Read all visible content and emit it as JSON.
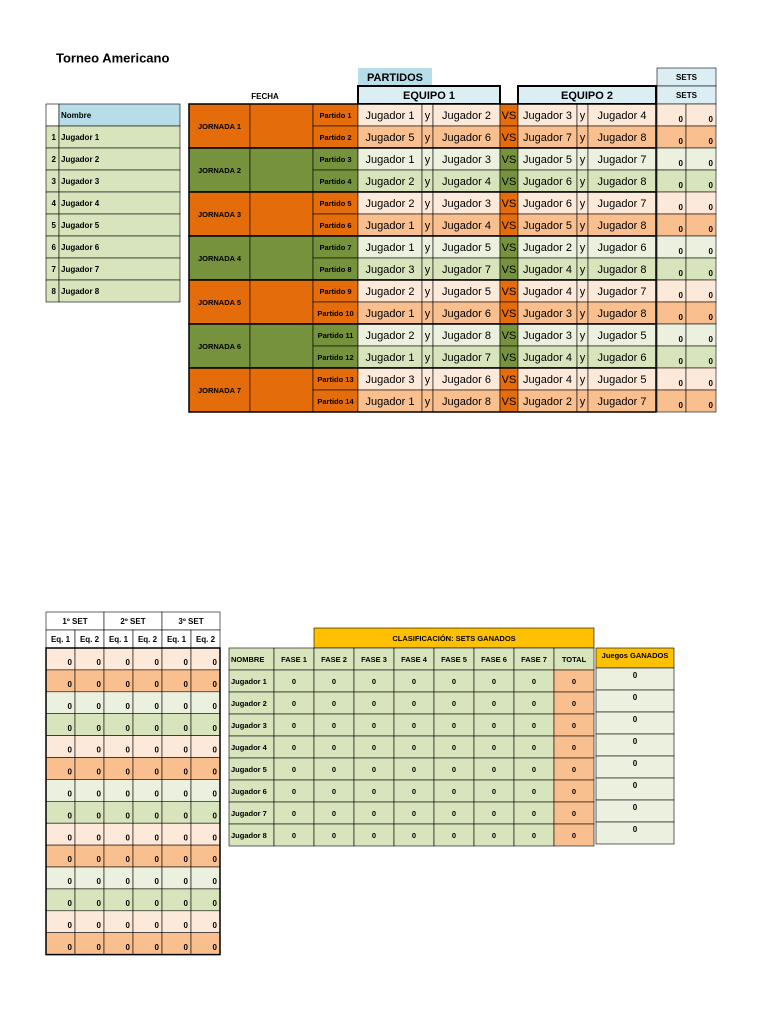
{
  "title": "Torneo Americano",
  "players": {
    "header": "Nombre",
    "rows": [
      {
        "number": 1,
        "name": "Jugador 1"
      },
      {
        "number": 2,
        "name": "Jugador 2"
      },
      {
        "number": 3,
        "name": "Jugador 3"
      },
      {
        "number": 4,
        "name": "Jugador 4"
      },
      {
        "number": 5,
        "name": "Jugador 5"
      },
      {
        "number": 6,
        "name": "Jugador 6"
      },
      {
        "number": 7,
        "name": "Jugador 7"
      },
      {
        "number": 8,
        "name": "Jugador 8"
      }
    ]
  },
  "fixtures": {
    "partidos_label": "PARTIDOS",
    "fecha_label": "FECHA",
    "equipo1_label": "EQUIPO 1",
    "equipo2_label": "EQUIPO 2",
    "sets_labels": [
      "SETS",
      "SETS"
    ],
    "and_label": "y",
    "vs_label": "VS",
    "jornadas": [
      {
        "label": "JORNADA 1",
        "partidos": [
          {
            "label": "Partido 1",
            "equipo1": [
              "Jugador 1",
              "Jugador 2"
            ],
            "equipo2": [
              "Jugador 3",
              "Jugador 4"
            ],
            "sets": [
              0,
              0
            ]
          },
          {
            "label": "Partido 2",
            "equipo1": [
              "Jugador 5",
              "Jugador 6"
            ],
            "equipo2": [
              "Jugador 7",
              "Jugador 8"
            ],
            "sets": [
              0,
              0
            ]
          }
        ]
      },
      {
        "label": "JORNADA 2",
        "partidos": [
          {
            "label": "Partido 3",
            "equipo1": [
              "Jugador 1",
              "Jugador 3"
            ],
            "equipo2": [
              "Jugador 5",
              "Jugador 7"
            ],
            "sets": [
              0,
              0
            ]
          },
          {
            "label": "Partido 4",
            "equipo1": [
              "Jugador 2",
              "Jugador 4"
            ],
            "equipo2": [
              "Jugador 6",
              "Jugador 8"
            ],
            "sets": [
              0,
              0
            ]
          }
        ]
      },
      {
        "label": "JORNADA 3",
        "partidos": [
          {
            "label": "Partido 5",
            "equipo1": [
              "Jugador 2",
              "Jugador 3"
            ],
            "equipo2": [
              "Jugador 6",
              "Jugador 7"
            ],
            "sets": [
              0,
              0
            ]
          },
          {
            "label": "Partido 6",
            "equipo1": [
              "Jugador 1",
              "Jugador 4"
            ],
            "equipo2": [
              "Jugador 5",
              "Jugador 8"
            ],
            "sets": [
              0,
              0
            ]
          }
        ]
      },
      {
        "label": "JORNADA 4",
        "partidos": [
          {
            "label": "Partido 7",
            "equipo1": [
              "Jugador 1",
              "Jugador 5"
            ],
            "equipo2": [
              "Jugador 2",
              "Jugador 6"
            ],
            "sets": [
              0,
              0
            ]
          },
          {
            "label": "Partido 8",
            "equipo1": [
              "Jugador 3",
              "Jugador 7"
            ],
            "equipo2": [
              "Jugador 4",
              "Jugador 8"
            ],
            "sets": [
              0,
              0
            ]
          }
        ]
      },
      {
        "label": "JORNADA 5",
        "partidos": [
          {
            "label": "Partido 9",
            "equipo1": [
              "Jugador 2",
              "Jugador 5"
            ],
            "equipo2": [
              "Jugador 4",
              "Jugador 7"
            ],
            "sets": [
              0,
              0
            ]
          },
          {
            "label": "Partido 10",
            "equipo1": [
              "Jugador 1",
              "Jugador 6"
            ],
            "equipo2": [
              "Jugador 3",
              "Jugador 8"
            ],
            "sets": [
              0,
              0
            ]
          }
        ]
      },
      {
        "label": "JORNADA 6",
        "partidos": [
          {
            "label": "Partido 11",
            "equipo1": [
              "Jugador 2",
              "Jugador 8"
            ],
            "equipo2": [
              "Jugador 3",
              "Jugador 5"
            ],
            "sets": [
              0,
              0
            ]
          },
          {
            "label": "Partido 12",
            "equipo1": [
              "Jugador 1",
              "Jugador 7"
            ],
            "equipo2": [
              "Jugador 4",
              "Jugador 6"
            ],
            "sets": [
              0,
              0
            ]
          }
        ]
      },
      {
        "label": "JORNADA 7",
        "partidos": [
          {
            "label": "Partido 13",
            "equipo1": [
              "Jugador 3",
              "Jugador 6"
            ],
            "equipo2": [
              "Jugador 4",
              "Jugador 5"
            ],
            "sets": [
              0,
              0
            ]
          },
          {
            "label": "Partido 14",
            "equipo1": [
              "Jugador 1",
              "Jugador 8"
            ],
            "equipo2": [
              "Jugador 2",
              "Jugador 7"
            ],
            "sets": [
              0,
              0
            ]
          }
        ]
      }
    ]
  },
  "set_scores": {
    "set_labels": [
      "1º SET",
      "2º SET",
      "3º SET"
    ],
    "team_labels": [
      "Eq. 1",
      "Eq. 2",
      "Eq. 1",
      "Eq. 2",
      "Eq. 1",
      "Eq. 2"
    ],
    "rows": [
      [
        0,
        0,
        0,
        0,
        0,
        0
      ],
      [
        0,
        0,
        0,
        0,
        0,
        0
      ],
      [
        0,
        0,
        0,
        0,
        0,
        0
      ],
      [
        0,
        0,
        0,
        0,
        0,
        0
      ],
      [
        0,
        0,
        0,
        0,
        0,
        0
      ],
      [
        0,
        0,
        0,
        0,
        0,
        0
      ],
      [
        0,
        0,
        0,
        0,
        0,
        0
      ],
      [
        0,
        0,
        0,
        0,
        0,
        0
      ],
      [
        0,
        0,
        0,
        0,
        0,
        0
      ],
      [
        0,
        0,
        0,
        0,
        0,
        0
      ],
      [
        0,
        0,
        0,
        0,
        0,
        0
      ],
      [
        0,
        0,
        0,
        0,
        0,
        0
      ],
      [
        0,
        0,
        0,
        0,
        0,
        0
      ],
      [
        0,
        0,
        0,
        0,
        0,
        0
      ]
    ]
  },
  "classification": {
    "title": "CLASIFICACIÓN: SETS GANADOS",
    "columns": [
      "NOMBRE",
      "FASE 1",
      "FASE 2",
      "FASE 3",
      "FASE 4",
      "FASE 5",
      "FASE 6",
      "FASE 7",
      "TOTAL"
    ],
    "rows": [
      [
        "Jugador 1",
        0,
        0,
        0,
        0,
        0,
        0,
        0,
        0
      ],
      [
        "Jugador 2",
        0,
        0,
        0,
        0,
        0,
        0,
        0,
        0
      ],
      [
        "Jugador 3",
        0,
        0,
        0,
        0,
        0,
        0,
        0,
        0
      ],
      [
        "Jugador 4",
        0,
        0,
        0,
        0,
        0,
        0,
        0,
        0
      ],
      [
        "Jugador 5",
        0,
        0,
        0,
        0,
        0,
        0,
        0,
        0
      ],
      [
        "Jugador 6",
        0,
        0,
        0,
        0,
        0,
        0,
        0,
        0
      ],
      [
        "Jugador 7",
        0,
        0,
        0,
        0,
        0,
        0,
        0,
        0
      ],
      [
        "Jugador 8",
        0,
        0,
        0,
        0,
        0,
        0,
        0,
        0
      ]
    ],
    "games_title": "Juegos GANADOS",
    "games": [
      0,
      0,
      0,
      0,
      0,
      0,
      0,
      0
    ]
  }
}
